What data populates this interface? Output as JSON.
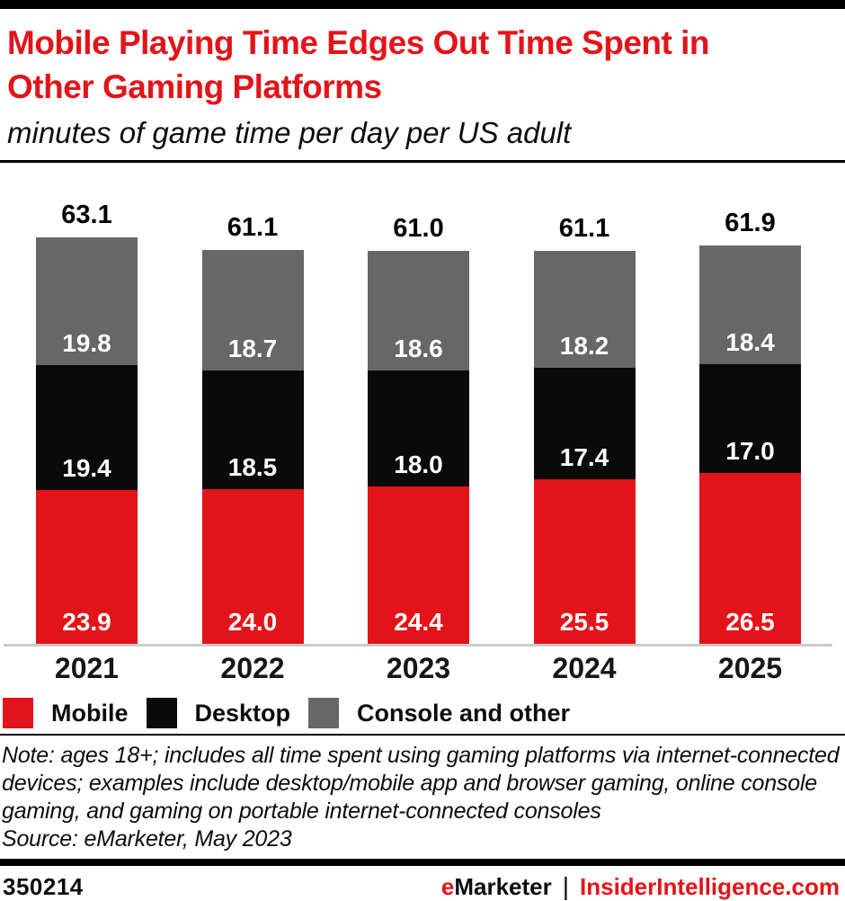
{
  "header": {
    "title_line1": "Mobile Playing Time Edges Out Time Spent in",
    "title_line2": "Other Gaming Platforms",
    "subtitle": "minutes of game time per day per US adult"
  },
  "chart_data": {
    "type": "bar",
    "stacked": true,
    "title": "Mobile Playing Time Edges Out Time Spent in Other Gaming Platforms",
    "subtitle": "minutes of game time per day per US adult",
    "categories": [
      "2021",
      "2022",
      "2023",
      "2024",
      "2025"
    ],
    "series": [
      {
        "name": "Mobile",
        "color": "#e31419",
        "values": [
          23.9,
          24.0,
          24.4,
          25.5,
          26.5
        ]
      },
      {
        "name": "Desktop",
        "color": "#0a0a0a",
        "values": [
          19.4,
          18.5,
          18.0,
          17.4,
          17.0
        ]
      },
      {
        "name": "Console and other",
        "color": "#676767",
        "values": [
          19.8,
          18.7,
          18.6,
          18.2,
          18.4
        ]
      }
    ],
    "totals": [
      63.1,
      61.1,
      61.0,
      61.1,
      61.9
    ],
    "xlabel": "",
    "ylabel": "",
    "ylim": [
      0,
      63.1
    ],
    "grid": false,
    "legend_position": "bottom",
    "value_labels": "inside-bottom, white",
    "total_labels": "above bars, black"
  },
  "notes": {
    "lines": [
      "Note: ages 18+; includes all time spent using gaming platforms via internet-connected",
      "devices; examples include desktop/mobile app and browser gaming, online console",
      "gaming, and gaming on portable internet-connected consoles",
      "Source: eMarketer, May 2023"
    ]
  },
  "footer": {
    "chart_id": "350214",
    "brand_emarketer_e": "e",
    "brand_emarketer_rest": "Marketer",
    "separator": "|",
    "brand_site": "InsiderIntelligence.com"
  },
  "colors": {
    "accent_red": "#e31419",
    "bar_black": "#0a0a0a",
    "bar_gray": "#676767",
    "axis_line": "#cccccc"
  }
}
